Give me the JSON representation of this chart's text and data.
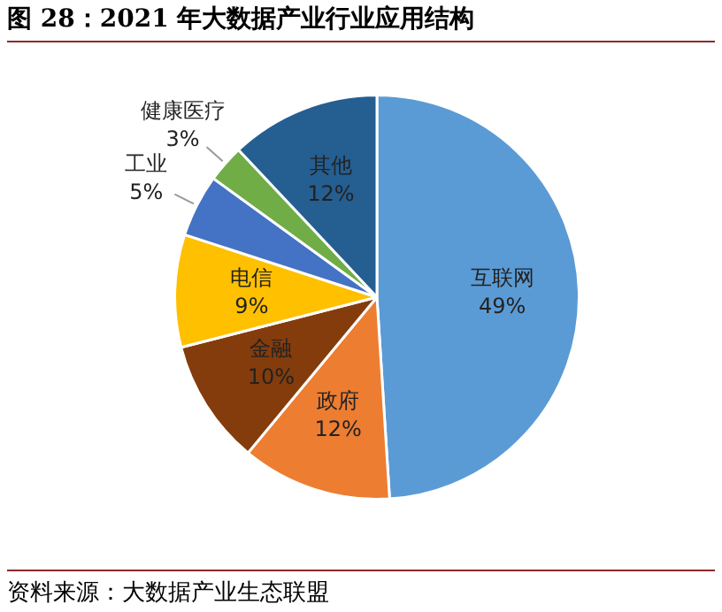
{
  "chart_data": {
    "type": "pie",
    "title": "图 28：2021 年大数据产业行业应用结构",
    "categories": [
      "互联网",
      "政府",
      "金融",
      "电信",
      "工业",
      "健康医疗",
      "其他"
    ],
    "values": [
      49,
      12,
      10,
      9,
      5,
      3,
      12
    ],
    "value_labels": [
      "49%",
      "12%",
      "10%",
      "9%",
      "5%",
      "3%",
      "12%"
    ],
    "colors": [
      "#5b9bd5",
      "#ed7d31",
      "#843c0c",
      "#ffc000",
      "#4472c4",
      "#70ad47",
      "#255e91"
    ],
    "legend": false,
    "annotations": [
      "资料来源：大数据产业生态联盟"
    ]
  }
}
